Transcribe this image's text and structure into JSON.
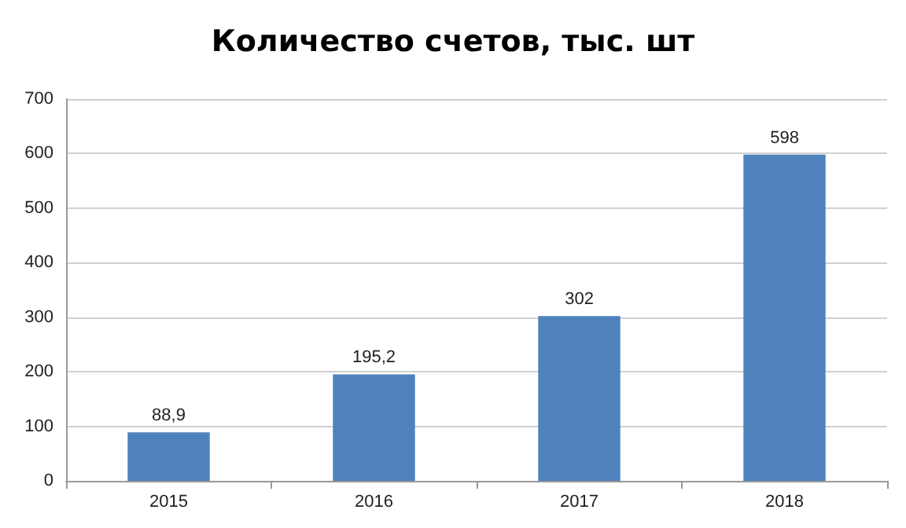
{
  "chart_data": {
    "type": "bar",
    "title": "Количество счетов, тыс. шт",
    "categories": [
      "2015",
      "2016",
      "2017",
      "2018"
    ],
    "values": [
      88.9,
      195.2,
      302,
      598
    ],
    "value_labels": [
      "88,9",
      "195,2",
      "302",
      "598"
    ],
    "color": "#4f81bd",
    "ylim": [
      0,
      700
    ],
    "yticks": [
      0,
      100,
      200,
      300,
      400,
      500,
      600,
      700
    ],
    "grid": "y"
  }
}
